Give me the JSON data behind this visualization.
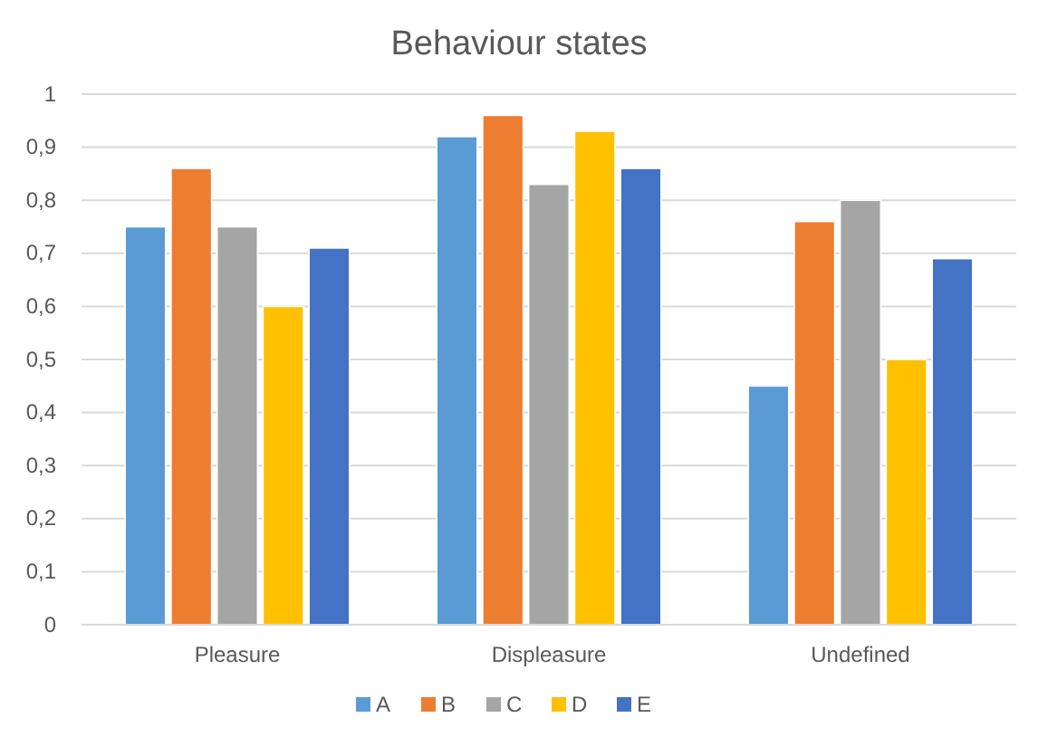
{
  "chart_data": {
    "type": "bar",
    "title": "Behaviour states",
    "categories": [
      "Pleasure",
      "Displeasure",
      "Undefined"
    ],
    "series": [
      {
        "name": "A",
        "color": "#5b9bd5",
        "values": [
          0.75,
          0.92,
          0.45
        ]
      },
      {
        "name": "B",
        "color": "#ed7d31",
        "values": [
          0.86,
          0.96,
          0.76
        ]
      },
      {
        "name": "C",
        "color": "#a5a5a5",
        "values": [
          0.75,
          0.83,
          0.8
        ]
      },
      {
        "name": "D",
        "color": "#ffc000",
        "values": [
          0.6,
          0.93,
          0.5
        ]
      },
      {
        "name": "E",
        "color": "#4472c4",
        "values": [
          0.71,
          0.86,
          0.69
        ]
      }
    ],
    "ylim": [
      0,
      1
    ],
    "yticks": [
      0,
      {
        "value": 0.1,
        "label": "0,1"
      },
      {
        "value": 0.2,
        "label": "0,2"
      },
      {
        "value": 0.3,
        "label": "0,3"
      },
      {
        "value": 0.4,
        "label": "0,4"
      },
      {
        "value": 0.5,
        "label": "0,5"
      },
      {
        "value": 0.6,
        "label": "0,6"
      },
      {
        "value": 0.7,
        "label": "0,7"
      },
      {
        "value": 0.8,
        "label": "0,8"
      },
      {
        "value": 0.9,
        "label": "0,9"
      },
      1
    ],
    "grid": "y",
    "legend": "bottom"
  }
}
